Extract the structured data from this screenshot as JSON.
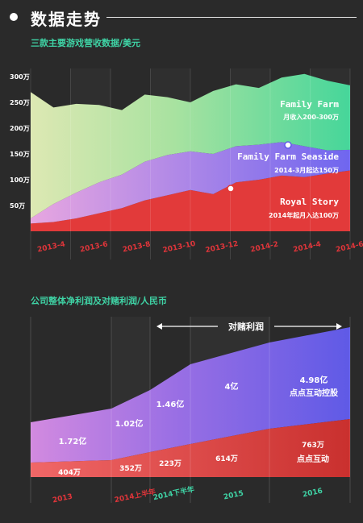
{
  "header": {
    "title": "数据走势"
  },
  "colors": {
    "background": "#2a2a2a",
    "accent_green": "#3fd3a5",
    "axis_tick_red": "#e0353a"
  },
  "chart_data": [
    {
      "type": "area",
      "title": "三款主要游戏营收数据/美元",
      "x_ticks": [
        "2013-4",
        "2013-6",
        "2013-8",
        "2013-10",
        "2013-12",
        "2014-2",
        "2014-4",
        "2014-6"
      ],
      "y_ticks": [
        "50万",
        "100万",
        "150万",
        "200万",
        "250万",
        "300万"
      ],
      "ylim": [
        0,
        300
      ],
      "y_unit": "万美元",
      "stacked": true,
      "series": [
        {
          "name": "Royal Story",
          "color": "#e23a3a",
          "values": [
            15,
            18,
            25,
            35,
            45,
            60,
            70,
            80,
            72,
            95,
            100,
            108,
            105,
            112,
            118
          ]
        },
        {
          "name": "Family Farm Seaside",
          "color": "#6f66ef",
          "values": [
            10,
            35,
            50,
            60,
            65,
            75,
            78,
            75,
            78,
            70,
            68,
            65,
            60,
            45,
            40
          ]
        },
        {
          "name": "Family Farm",
          "color": "#46d69a",
          "values": [
            245,
            187,
            172,
            150,
            125,
            130,
            112,
            95,
            122,
            120,
            110,
            125,
            140,
            135,
            125
          ]
        }
      ],
      "annotations": [
        {
          "series": "Family Farm",
          "title": "Family Farm",
          "note": "月收入200-300万"
        },
        {
          "series": "Family Farm Seaside",
          "title": "Family Farm Seaside",
          "note": "2014-3月起达150万"
        },
        {
          "series": "Royal Story",
          "title": "Royal Story",
          "note": "2014年起月入达100万"
        }
      ],
      "grid": "vertical"
    },
    {
      "type": "area",
      "title": "公司整体净利润及对赌利润/人民币",
      "categories": [
        "2013",
        "2014上半年",
        "2014下半年",
        "2015",
        "2016"
      ],
      "series": [
        {
          "name": "bottom",
          "color": "#e23a3a",
          "labels": [
            "404万",
            "352万",
            "223万",
            "614万",
            "763万"
          ]
        },
        {
          "name": "top",
          "color_from": "#d28ae0",
          "color_to": "#5f5ae6",
          "labels": [
            "1.72亿",
            "1.02亿",
            "1.46亿",
            "4亿",
            "4.98亿"
          ]
        }
      ],
      "segment_names": [
        "",
        "",
        "",
        "",
        "点点互动"
      ],
      "top_segment_names": [
        "",
        "",
        "",
        "",
        "点点互动控股"
      ],
      "range_annotation": {
        "label": "对赌利润",
        "from": "2014下半年",
        "to": "2016"
      },
      "grid": "vertical"
    }
  ]
}
